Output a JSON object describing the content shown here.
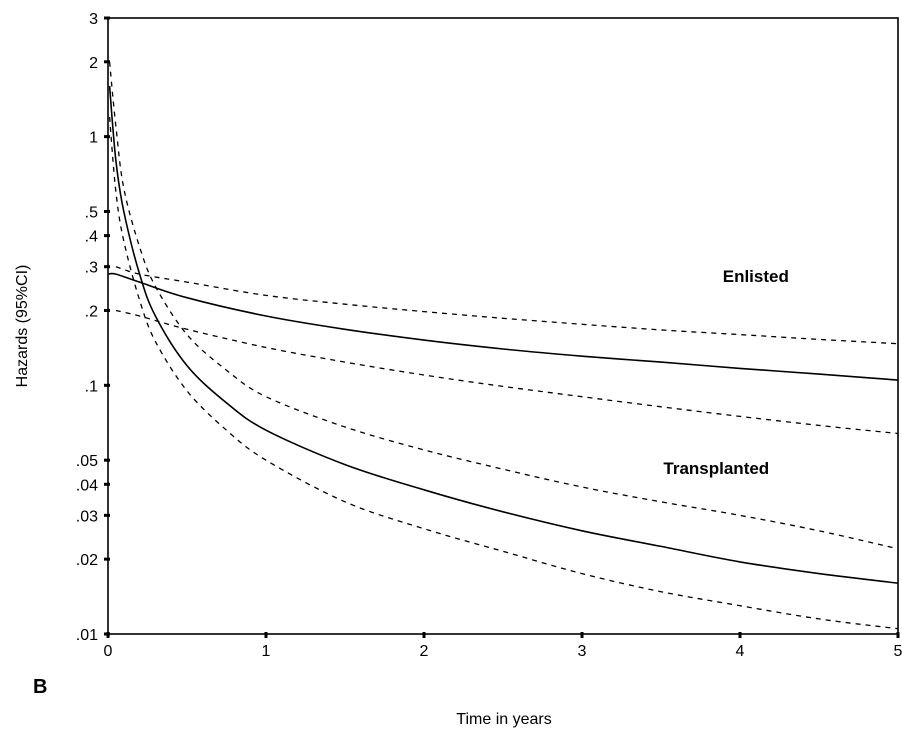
{
  "panel_label": "B",
  "chart_data": {
    "type": "line",
    "xlabel": "Time in years",
    "ylabel": "Hazards (95%CI)",
    "xlim": [
      0,
      5
    ],
    "ylim": [
      0.01,
      3
    ],
    "y_scale": "log",
    "grid": false,
    "x_ticks": [
      0,
      1,
      2,
      3,
      4,
      5
    ],
    "x_tick_labels": [
      "0",
      "1",
      "2",
      "3",
      "4",
      "5"
    ],
    "y_ticks": [
      3,
      2,
      1,
      0.5,
      0.4,
      0.3,
      0.2,
      0.1,
      0.05,
      0.04,
      0.03,
      0.02,
      0.01
    ],
    "y_tick_labels": [
      "3",
      "2",
      "1",
      ".5",
      ".4",
      ".3",
      ".2",
      ".1",
      ".05",
      ".04",
      ".03",
      ".02",
      ".01"
    ],
    "annotations": [
      {
        "text": "Enlisted",
        "x": 4.1,
        "y": 0.26
      },
      {
        "text": "Transplanted",
        "x": 3.85,
        "y": 0.044
      }
    ],
    "series": [
      {
        "name": "Enlisted",
        "style": "solid",
        "x": [
          0,
          0.05,
          0.2,
          0.5,
          1,
          1.5,
          2,
          2.5,
          3,
          3.5,
          4,
          4.5,
          5
        ],
        "y": [
          0.28,
          0.28,
          0.26,
          0.225,
          0.19,
          0.168,
          0.152,
          0.14,
          0.131,
          0.124,
          0.117,
          0.111,
          0.105
        ]
      },
      {
        "name": "Enlisted upper 95% CI",
        "style": "dashed",
        "x": [
          0.05,
          0.2,
          0.5,
          1,
          1.5,
          2,
          2.5,
          3,
          3.5,
          4,
          4.5,
          5
        ],
        "y": [
          0.3,
          0.28,
          0.26,
          0.23,
          0.212,
          0.198,
          0.186,
          0.176,
          0.167,
          0.16,
          0.153,
          0.147
        ]
      },
      {
        "name": "Enlisted lower 95% CI",
        "style": "dashed",
        "x": [
          0.05,
          0.2,
          0.5,
          1,
          1.5,
          2,
          2.5,
          3,
          3.5,
          4,
          4.5,
          5
        ],
        "y": [
          0.2,
          0.19,
          0.168,
          0.142,
          0.124,
          0.11,
          0.099,
          0.09,
          0.082,
          0.075,
          0.069,
          0.064
        ]
      },
      {
        "name": "Transplanted",
        "style": "solid",
        "x": [
          0.01,
          0.05,
          0.1,
          0.2,
          0.3,
          0.5,
          0.75,
          1,
          1.5,
          2,
          2.5,
          3,
          3.5,
          4,
          4.5,
          5
        ],
        "y": [
          1.6,
          0.8,
          0.5,
          0.28,
          0.19,
          0.12,
          0.085,
          0.066,
          0.048,
          0.038,
          0.031,
          0.026,
          0.0225,
          0.0195,
          0.0175,
          0.016
        ]
      },
      {
        "name": "Transplanted upper 95% CI",
        "style": "dashed",
        "x": [
          0.01,
          0.05,
          0.1,
          0.2,
          0.3,
          0.5,
          0.75,
          1,
          1.5,
          2,
          2.5,
          3,
          3.5,
          4,
          4.5,
          5
        ],
        "y": [
          2.0,
          1.1,
          0.62,
          0.36,
          0.25,
          0.16,
          0.115,
          0.09,
          0.068,
          0.055,
          0.046,
          0.039,
          0.034,
          0.03,
          0.026,
          0.022
        ]
      },
      {
        "name": "Transplanted lower 95% CI",
        "style": "dashed",
        "x": [
          0.01,
          0.05,
          0.1,
          0.2,
          0.3,
          0.5,
          0.75,
          1,
          1.5,
          2,
          2.5,
          3,
          3.5,
          4,
          4.5,
          5
        ],
        "y": [
          1.2,
          0.6,
          0.38,
          0.22,
          0.15,
          0.095,
          0.066,
          0.05,
          0.034,
          0.0265,
          0.0215,
          0.0175,
          0.0148,
          0.013,
          0.0115,
          0.0105
        ]
      }
    ]
  }
}
